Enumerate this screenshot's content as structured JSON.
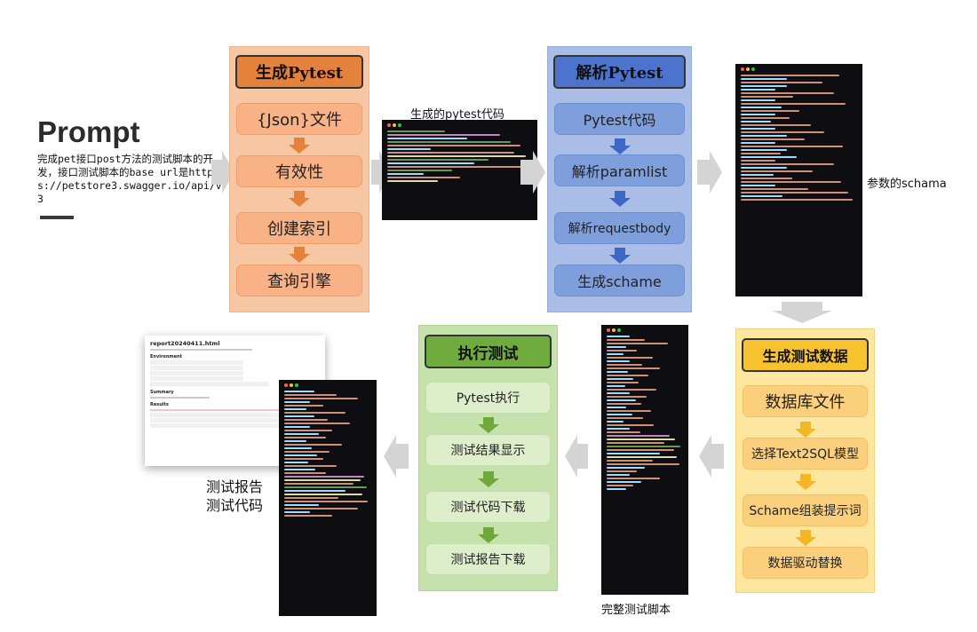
{
  "prompt": {
    "title": "Prompt",
    "body": "完成pet接口post方法的测试脚本的开发，接口测试脚本的base url是https://petstore3.swagger.io/api/v3"
  },
  "panels": {
    "generate_pytest": {
      "title": "生成Pytest",
      "steps": [
        "{Json}文件",
        "有效性",
        "创建索引",
        "查询引擎"
      ]
    },
    "parse_pytest": {
      "title": "解析Pytest",
      "steps": [
        "Pytest代码",
        "解析paramlist",
        "解析requestbody",
        "生成schame"
      ]
    },
    "generate_test_data": {
      "title": "生成测试数据",
      "steps": [
        "数据库文件",
        "选择Text2SQL模型",
        "Schame组装提示词",
        "数据驱动替换"
      ]
    },
    "execute_test": {
      "title": "执行测试",
      "steps": [
        "Pytest执行",
        "测试结果显示",
        "测试代码下载",
        "测试报告下载"
      ]
    }
  },
  "captions": {
    "generated_code": "生成的pytest代码",
    "schema": "参数的schama",
    "full_script": "完整测试脚本",
    "report_line1": "测试报告",
    "report_line2": "测试代码"
  },
  "report_thumb": {
    "title": "report20240411.html",
    "environment": "Environment",
    "summary": "Summary",
    "results": "Results"
  },
  "colors": {
    "orange": "#f6c7a2",
    "blue": "#a9bde6",
    "green": "#c6e2ac",
    "yellow": "#fde6a0",
    "code_bg": "#0e0e12"
  }
}
